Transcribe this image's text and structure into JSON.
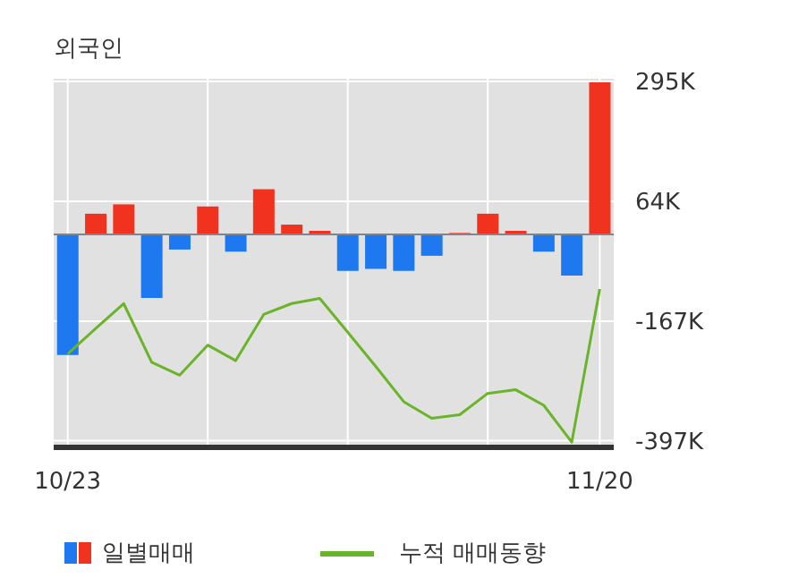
{
  "chart_data": {
    "type": "bar",
    "title": "외국인",
    "categories": [
      "10/23",
      null,
      null,
      null,
      null,
      null,
      null,
      null,
      null,
      null,
      null,
      null,
      null,
      null,
      null,
      null,
      null,
      null,
      null,
      "11/20"
    ],
    "series": [
      {
        "name": "일별매매",
        "colors": [
          "#1e78f0",
          "#f0321e",
          "#f0321e",
          "#1e78f0",
          "#1e78f0",
          "#f0321e",
          "#1e78f0",
          "#f0321e",
          "#f0321e",
          "#f0321e",
          "#1e78f0",
          "#1e78f0",
          "#1e78f0",
          "#1e78f0",
          "#f0321e",
          "#f0321e",
          "#f0321e",
          "#1e78f0",
          "#1e78f0",
          "#f0321e"
        ],
        "values": [
          -232,
          40,
          58,
          -122,
          -29,
          54,
          -33,
          87,
          19,
          7,
          -70,
          -66,
          -70,
          -41,
          3,
          40,
          7,
          -33,
          -79,
          293
        ]
      },
      {
        "name": "누적 매매동향",
        "type": "line",
        "color": "#6ab42a",
        "values": [
          -230,
          -181,
          -133,
          -246,
          -271,
          -213,
          -243,
          -154,
          -133,
          -123,
          -188,
          -254,
          -322,
          -354,
          -347,
          -306,
          -299,
          -329,
          -400,
          -105
        ]
      }
    ],
    "ylim": [
      -410,
      300
    ],
    "yticks": [
      {
        "value": 295,
        "label": "295K"
      },
      {
        "value": 64,
        "label": "64K"
      },
      {
        "value": -167,
        "label": "-167K"
      },
      {
        "value": -397,
        "label": "-397K"
      }
    ],
    "grid": true,
    "legend": "bottom",
    "marker": "none"
  }
}
